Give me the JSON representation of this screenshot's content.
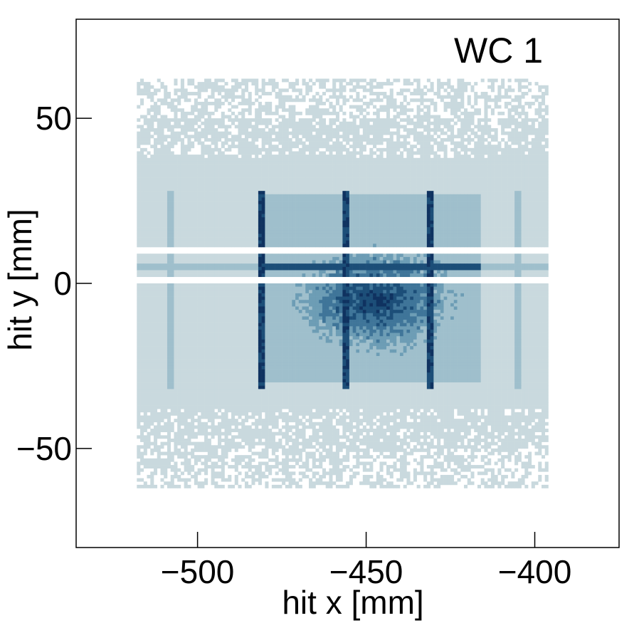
{
  "chart_data": {
    "type": "heatmap",
    "title": "WC 1",
    "xlabel": "hit x [mm]",
    "ylabel": "hit y [mm]",
    "xlim": [
      -536,
      -375
    ],
    "ylim": [
      -80,
      80
    ],
    "x_ticks": [
      -500,
      -450,
      -400
    ],
    "y_ticks": [
      50,
      0,
      -50
    ],
    "x_tick_labels": [
      "−500",
      "−450",
      "−400"
    ],
    "y_tick_labels": [
      "50",
      "0",
      "−50"
    ],
    "grid": false,
    "colormap": [
      "#c9d9de",
      "#9fbfcc",
      "#6d9db5",
      "#3f7599",
      "#1c4e78",
      "#0f3260"
    ],
    "occupied_region": {
      "x": [
        -518,
        -396
      ],
      "y": [
        -62,
        62
      ]
    },
    "core_region": {
      "x": [
        -481,
        -416
      ],
      "y": [
        -30,
        27
      ]
    },
    "hot_spot": {
      "x": -447,
      "y": -5
    },
    "bright_columns_x": [
      -481,
      -456,
      -431,
      -508,
      -405
    ],
    "gap_rows_y": [
      10,
      1
    ]
  }
}
